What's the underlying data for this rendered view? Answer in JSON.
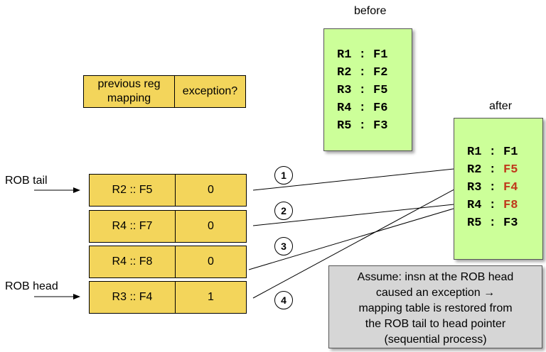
{
  "labels": {
    "before": "before",
    "after": "after",
    "rob_tail": "ROB tail",
    "rob_head": "ROB head"
  },
  "header": {
    "prev_mapping": "previous reg mapping",
    "exception": "exception?"
  },
  "rob_entries": [
    {
      "mapping": "R2 :: F5",
      "exception": "0"
    },
    {
      "mapping": "R4 :: F7",
      "exception": "0"
    },
    {
      "mapping": "R4 :: F8",
      "exception": "0"
    },
    {
      "mapping": "R3 :: F4",
      "exception": "1"
    }
  ],
  "before_table": [
    {
      "reg": "R1",
      "sep": ":",
      "phys": "F1"
    },
    {
      "reg": "R2",
      "sep": ":",
      "phys": "F2"
    },
    {
      "reg": "R3",
      "sep": ":",
      "phys": "F5"
    },
    {
      "reg": "R4",
      "sep": ":",
      "phys": "F6"
    },
    {
      "reg": "R5",
      "sep": ":",
      "phys": "F3"
    }
  ],
  "after_table": [
    {
      "reg": "R1",
      "sep": ":",
      "phys": "F1",
      "changed": false
    },
    {
      "reg": "R2",
      "sep": ":",
      "phys": "F5",
      "changed": true
    },
    {
      "reg": "R3",
      "sep": ":",
      "phys": "F4",
      "changed": true
    },
    {
      "reg": "R4",
      "sep": ":",
      "phys": "F8",
      "changed": true
    },
    {
      "reg": "R5",
      "sep": ":",
      "phys": "F3",
      "changed": false
    }
  ],
  "steps": [
    "1",
    "2",
    "3",
    "4"
  ],
  "note": {
    "lines": [
      "Assume: insn at the ROB head",
      "caused an exception →",
      "mapping table is restored from",
      "the ROB tail to head pointer",
      "(sequential process)"
    ]
  },
  "colors": {
    "rob_fill": "#f3d55b",
    "map_fill": "#ccff99",
    "note_fill": "#d6d6d6",
    "changed_text": "#c0391b"
  }
}
